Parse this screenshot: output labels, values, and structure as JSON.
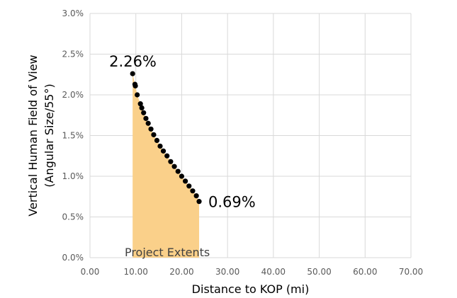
{
  "chart_data": {
    "type": "scatter",
    "title": "",
    "xlabel": "Distance to KOP (mi)",
    "ylabel_lines": [
      "Vertical Human Field of View",
      "(Angular Size/55°)"
    ],
    "xlim": [
      0,
      70
    ],
    "ylim": [
      0,
      3.0
    ],
    "x_ticks": [
      0,
      10,
      20,
      30,
      40,
      50,
      60,
      70
    ],
    "x_tick_labels": [
      "0.00",
      "10.00",
      "20.00",
      "30.00",
      "40.00",
      "50.00",
      "60.00",
      "70.00"
    ],
    "y_ticks": [
      0,
      0.5,
      1.0,
      1.5,
      2.0,
      2.5,
      3.0
    ],
    "y_tick_labels": [
      "0.0%",
      "0.5%",
      "1.0%",
      "1.5%",
      "2.0%",
      "2.5%",
      "3.0%"
    ],
    "grid": true,
    "legend": "none",
    "series": [
      {
        "marker_color": "#000000",
        "points": [
          [
            9.3,
            2.26
          ],
          [
            9.8,
            2.13
          ],
          [
            9.9,
            2.11
          ],
          [
            10.3,
            2.0
          ],
          [
            11.0,
            1.89
          ],
          [
            11.3,
            1.84
          ],
          [
            11.7,
            1.78
          ],
          [
            12.2,
            1.71
          ],
          [
            12.7,
            1.65
          ],
          [
            13.3,
            1.58
          ],
          [
            13.9,
            1.51
          ],
          [
            14.6,
            1.44
          ],
          [
            15.3,
            1.37
          ],
          [
            16.0,
            1.31
          ],
          [
            16.8,
            1.25
          ],
          [
            17.6,
            1.18
          ],
          [
            18.4,
            1.12
          ],
          [
            19.2,
            1.06
          ],
          [
            20.0,
            1.0
          ],
          [
            20.8,
            0.94
          ],
          [
            21.6,
            0.88
          ],
          [
            22.4,
            0.82
          ],
          [
            23.2,
            0.76
          ],
          [
            23.8,
            0.69
          ]
        ]
      }
    ],
    "shaded_region": {
      "label": "Project Extents",
      "x_range": [
        9.3,
        23.8
      ],
      "color": "#FAD08A"
    },
    "annotations": [
      {
        "text": "2.26%",
        "x": 9.3,
        "y": 2.26,
        "anchor": "left-above"
      },
      {
        "text": "0.69%",
        "x": 23.8,
        "y": 0.69,
        "anchor": "right"
      }
    ],
    "colors": {
      "gridline": "#d9d9d9",
      "points": "#000000",
      "shaded_area": "#FAD08A"
    }
  }
}
